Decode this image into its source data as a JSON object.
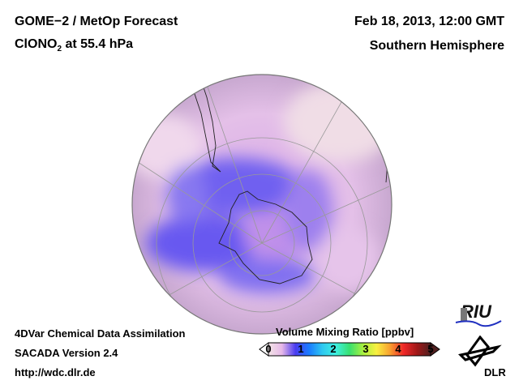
{
  "header": {
    "title_line1": "GOME−2 / MetOp Forecast",
    "species": "ClONO",
    "species_sub": "2",
    "level": " at 55.4 hPa",
    "date": "Feb 18, 2013, 12:00 GMT",
    "region": "Southern Hemisphere"
  },
  "footer": {
    "line1": "4DVar Chemical Data Assimilation",
    "line2": "SACADA Version 2.4",
    "line3": "http://wdc.dlr.de"
  },
  "colorbar": {
    "title": "Volume Mixing Ratio [ppbv]",
    "ticks": [
      "0",
      "1",
      "2",
      "3",
      "4",
      "5"
    ],
    "range": [
      0,
      5
    ],
    "colors": [
      "#f3e4e6",
      "#e6b8e8",
      "#4a3cf0",
      "#1a7bff",
      "#2ec8f0",
      "#3ef0e0",
      "#38e070",
      "#a8f040",
      "#f8f040",
      "#f8a030",
      "#f02828",
      "#a01818",
      "#502020"
    ]
  },
  "logos": {
    "riu": "RIU",
    "dlr": "DLR"
  }
}
